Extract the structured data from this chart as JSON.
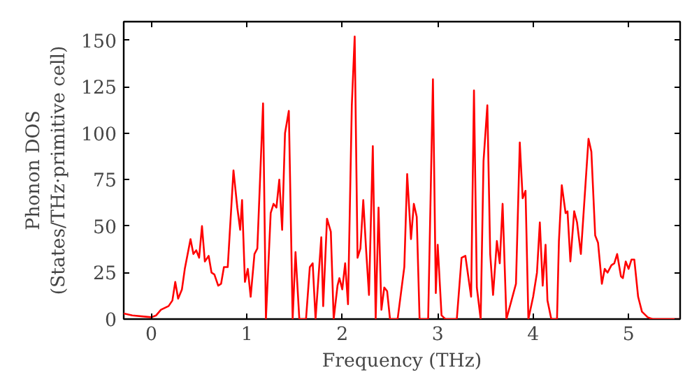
{
  "chart_data": {
    "type": "line",
    "xlabel": "Frequency (THz)",
    "ylabel": "Phonon DOS\n(States/THz·primitive cell)",
    "xlim": [
      -0.29,
      5.54
    ],
    "ylim": [
      0,
      160
    ],
    "xticks": [
      0,
      1,
      2,
      3,
      4,
      5
    ],
    "yticks": [
      0,
      25,
      50,
      75,
      100,
      125,
      150
    ],
    "grid": false,
    "series": [
      {
        "color": "#ff0000",
        "x": [
          -0.29,
          -0.2,
          0,
          0.05,
          0.1,
          0.18,
          0.22,
          0.25,
          0.28,
          0.32,
          0.35,
          0.41,
          0.44,
          0.47,
          0.5,
          0.53,
          0.56,
          0.6,
          0.63,
          0.66,
          0.7,
          0.73,
          0.76,
          0.8,
          0.86,
          0.9,
          0.93,
          0.95,
          0.98,
          1.01,
          1.04,
          1.08,
          1.11,
          1.17,
          1.2,
          1.25,
          1.28,
          1.31,
          1.34,
          1.37,
          1.4,
          1.44,
          1.48,
          1.51,
          1.55,
          1.62,
          1.66,
          1.69,
          1.72,
          1.78,
          1.8,
          1.84,
          1.88,
          1.91,
          1.95,
          1.97,
          2.0,
          2.03,
          2.06,
          2.1,
          2.13,
          2.16,
          2.19,
          2.22,
          2.25,
          2.28,
          2.32,
          2.35,
          2.38,
          2.41,
          2.44,
          2.47,
          2.5,
          2.58,
          2.65,
          2.68,
          2.72,
          2.75,
          2.78,
          2.81,
          2.9,
          2.95,
          2.98,
          3.0,
          3.04,
          3.08,
          3.2,
          3.25,
          3.29,
          3.35,
          3.38,
          3.41,
          3.45,
          3.48,
          3.52,
          3.55,
          3.58,
          3.62,
          3.65,
          3.68,
          3.72,
          3.82,
          3.86,
          3.89,
          3.92,
          3.95,
          4.0,
          4.04,
          4.07,
          4.1,
          4.13,
          4.15,
          4.19,
          4.25,
          4.27,
          4.3,
          4.34,
          4.36,
          4.39,
          4.43,
          4.46,
          4.5,
          4.58,
          4.61,
          4.65,
          4.68,
          4.72,
          4.75,
          4.78,
          4.82,
          4.85,
          4.88,
          4.92,
          4.94,
          4.97,
          5.0,
          5.03,
          5.06,
          5.1,
          5.14,
          5.2,
          5.25,
          5.54
        ],
        "values": [
          3,
          2,
          1,
          2,
          5,
          7,
          10,
          20,
          11,
          16,
          27,
          43,
          35,
          37,
          33,
          50,
          31,
          34,
          25,
          24,
          18,
          19,
          28,
          28,
          80,
          60,
          48,
          64,
          20,
          27,
          12,
          35,
          38,
          116,
          0,
          57,
          62,
          60,
          75,
          48,
          100,
          112,
          0,
          36,
          0,
          0,
          28,
          30,
          0,
          44,
          7,
          54,
          47,
          0,
          18,
          22,
          16,
          30,
          8,
          115,
          152,
          33,
          38,
          64,
          37,
          13,
          93,
          0,
          60,
          5,
          17,
          15,
          0,
          0,
          28,
          78,
          43,
          62,
          55,
          0,
          0,
          129,
          14,
          40,
          2,
          0,
          0,
          33,
          34,
          12,
          123,
          17,
          0,
          85,
          115,
          35,
          13,
          42,
          30,
          62,
          0,
          19,
          95,
          65,
          69,
          0,
          12,
          25,
          52,
          18,
          40,
          10,
          0,
          0,
          42,
          72,
          57,
          58,
          31,
          58,
          52,
          35,
          97,
          90,
          45,
          41,
          19,
          27,
          25,
          29,
          30,
          35,
          23,
          22,
          31,
          27,
          32,
          32,
          12,
          4,
          1,
          0,
          0
        ]
      }
    ]
  }
}
